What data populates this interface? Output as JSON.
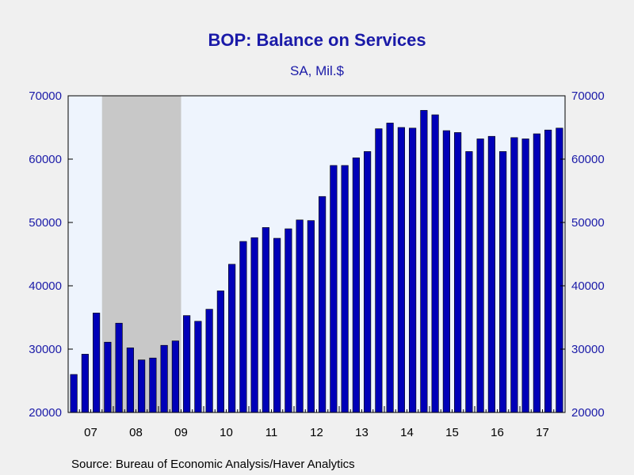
{
  "title": "BOP: Balance on Services",
  "subtitle": "SA, Mil.$",
  "source": "Source:  Bureau of Economic Analysis/Haver Analytics",
  "colors": {
    "bar": "#0000b8",
    "plot_bg": "#eef4fd",
    "recession": "#c8c8c8",
    "axis_text": "#1a1aa8"
  },
  "chart_data": {
    "type": "bar",
    "frequency": "quarterly",
    "y_axis": {
      "min": 20000,
      "max": 70000,
      "ticks": [
        "20000",
        "30000",
        "40000",
        "50000",
        "60000",
        "70000"
      ],
      "sides": [
        "left",
        "right"
      ]
    },
    "x_axis": {
      "year_labels": [
        "07",
        "08",
        "09",
        "10",
        "11",
        "12",
        "13",
        "14",
        "15",
        "16",
        "17"
      ]
    },
    "recession": {
      "start": "2007-Q4",
      "end": "2009-Q2"
    },
    "grid": false,
    "legend": "none",
    "quarters": [
      "2007-Q1",
      "2007-Q2",
      "2007-Q3",
      "2007-Q4",
      "2008-Q1",
      "2008-Q2",
      "2008-Q3",
      "2008-Q4",
      "2009-Q1",
      "2009-Q2",
      "2009-Q3",
      "2009-Q4",
      "2010-Q1",
      "2010-Q2",
      "2010-Q3",
      "2010-Q4",
      "2011-Q1",
      "2011-Q2",
      "2011-Q3",
      "2011-Q4",
      "2012-Q1",
      "2012-Q2",
      "2012-Q3",
      "2012-Q4",
      "2013-Q1",
      "2013-Q2",
      "2013-Q3",
      "2013-Q4",
      "2014-Q1",
      "2014-Q2",
      "2014-Q3",
      "2014-Q4",
      "2015-Q1",
      "2015-Q2",
      "2015-Q3",
      "2015-Q4",
      "2016-Q1",
      "2016-Q2",
      "2016-Q3",
      "2016-Q4",
      "2017-Q1",
      "2017-Q2",
      "2017-Q3",
      "2017-Q4"
    ],
    "values": [
      26000,
      29200,
      35700,
      31100,
      34100,
      30200,
      28300,
      28600,
      30600,
      31300,
      35300,
      34400,
      36300,
      39200,
      43400,
      47000,
      47600,
      49200,
      47500,
      49000,
      50400,
      50300,
      54100,
      59000,
      59000,
      60200,
      61200,
      64800,
      65700,
      65000,
      64900,
      67700,
      67000,
      64500,
      64200,
      61200,
      63200,
      63600,
      61200,
      63400,
      63200,
      64000,
      64600,
      64900
    ]
  }
}
